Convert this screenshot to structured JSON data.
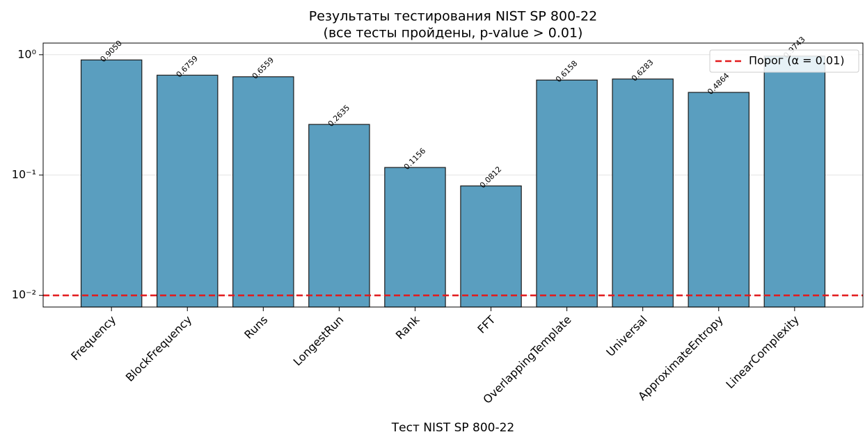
{
  "chart_data": {
    "type": "bar",
    "title": "Результаты тестирования NIST SP 800-22",
    "subtitle": "(все тесты пройдены, p-value > 0.01)",
    "x_label": "Тест NIST SP 800-22",
    "categories": [
      "Frequency",
      "BlockFrequency",
      "Runs",
      "LongestRun",
      "Rank",
      "FFT",
      "OverlappingTemplate",
      "Universal",
      "ApproximateEntropy",
      "LinearComplexity"
    ],
    "values": [
      0.905,
      0.6759,
      0.6559,
      0.2635,
      0.1156,
      0.0812,
      0.6158,
      0.6283,
      0.4864,
      0.9743
    ],
    "value_labels": [
      "0.9050",
      "0.6759",
      "0.6559",
      "0.2635",
      "0.1156",
      "0.0812",
      "0.6158",
      "0.6283",
      "0.4864",
      "0.9743"
    ],
    "color": "#5a9ebf",
    "edge_color": "#1a1a1a",
    "log_scale": true,
    "ylim": [
      0.008,
      1.25
    ],
    "yticks": [
      {
        "value": 0.01,
        "label": "10⁻²"
      },
      {
        "value": 0.1,
        "label": "10⁻¹"
      },
      {
        "value": 1,
        "label": "10⁰"
      }
    ],
    "grid": true,
    "threshold": {
      "value": 0.01,
      "label": "Порог (α = 0.01)",
      "color": "#e31a1c"
    },
    "legend_position": "upper right"
  }
}
